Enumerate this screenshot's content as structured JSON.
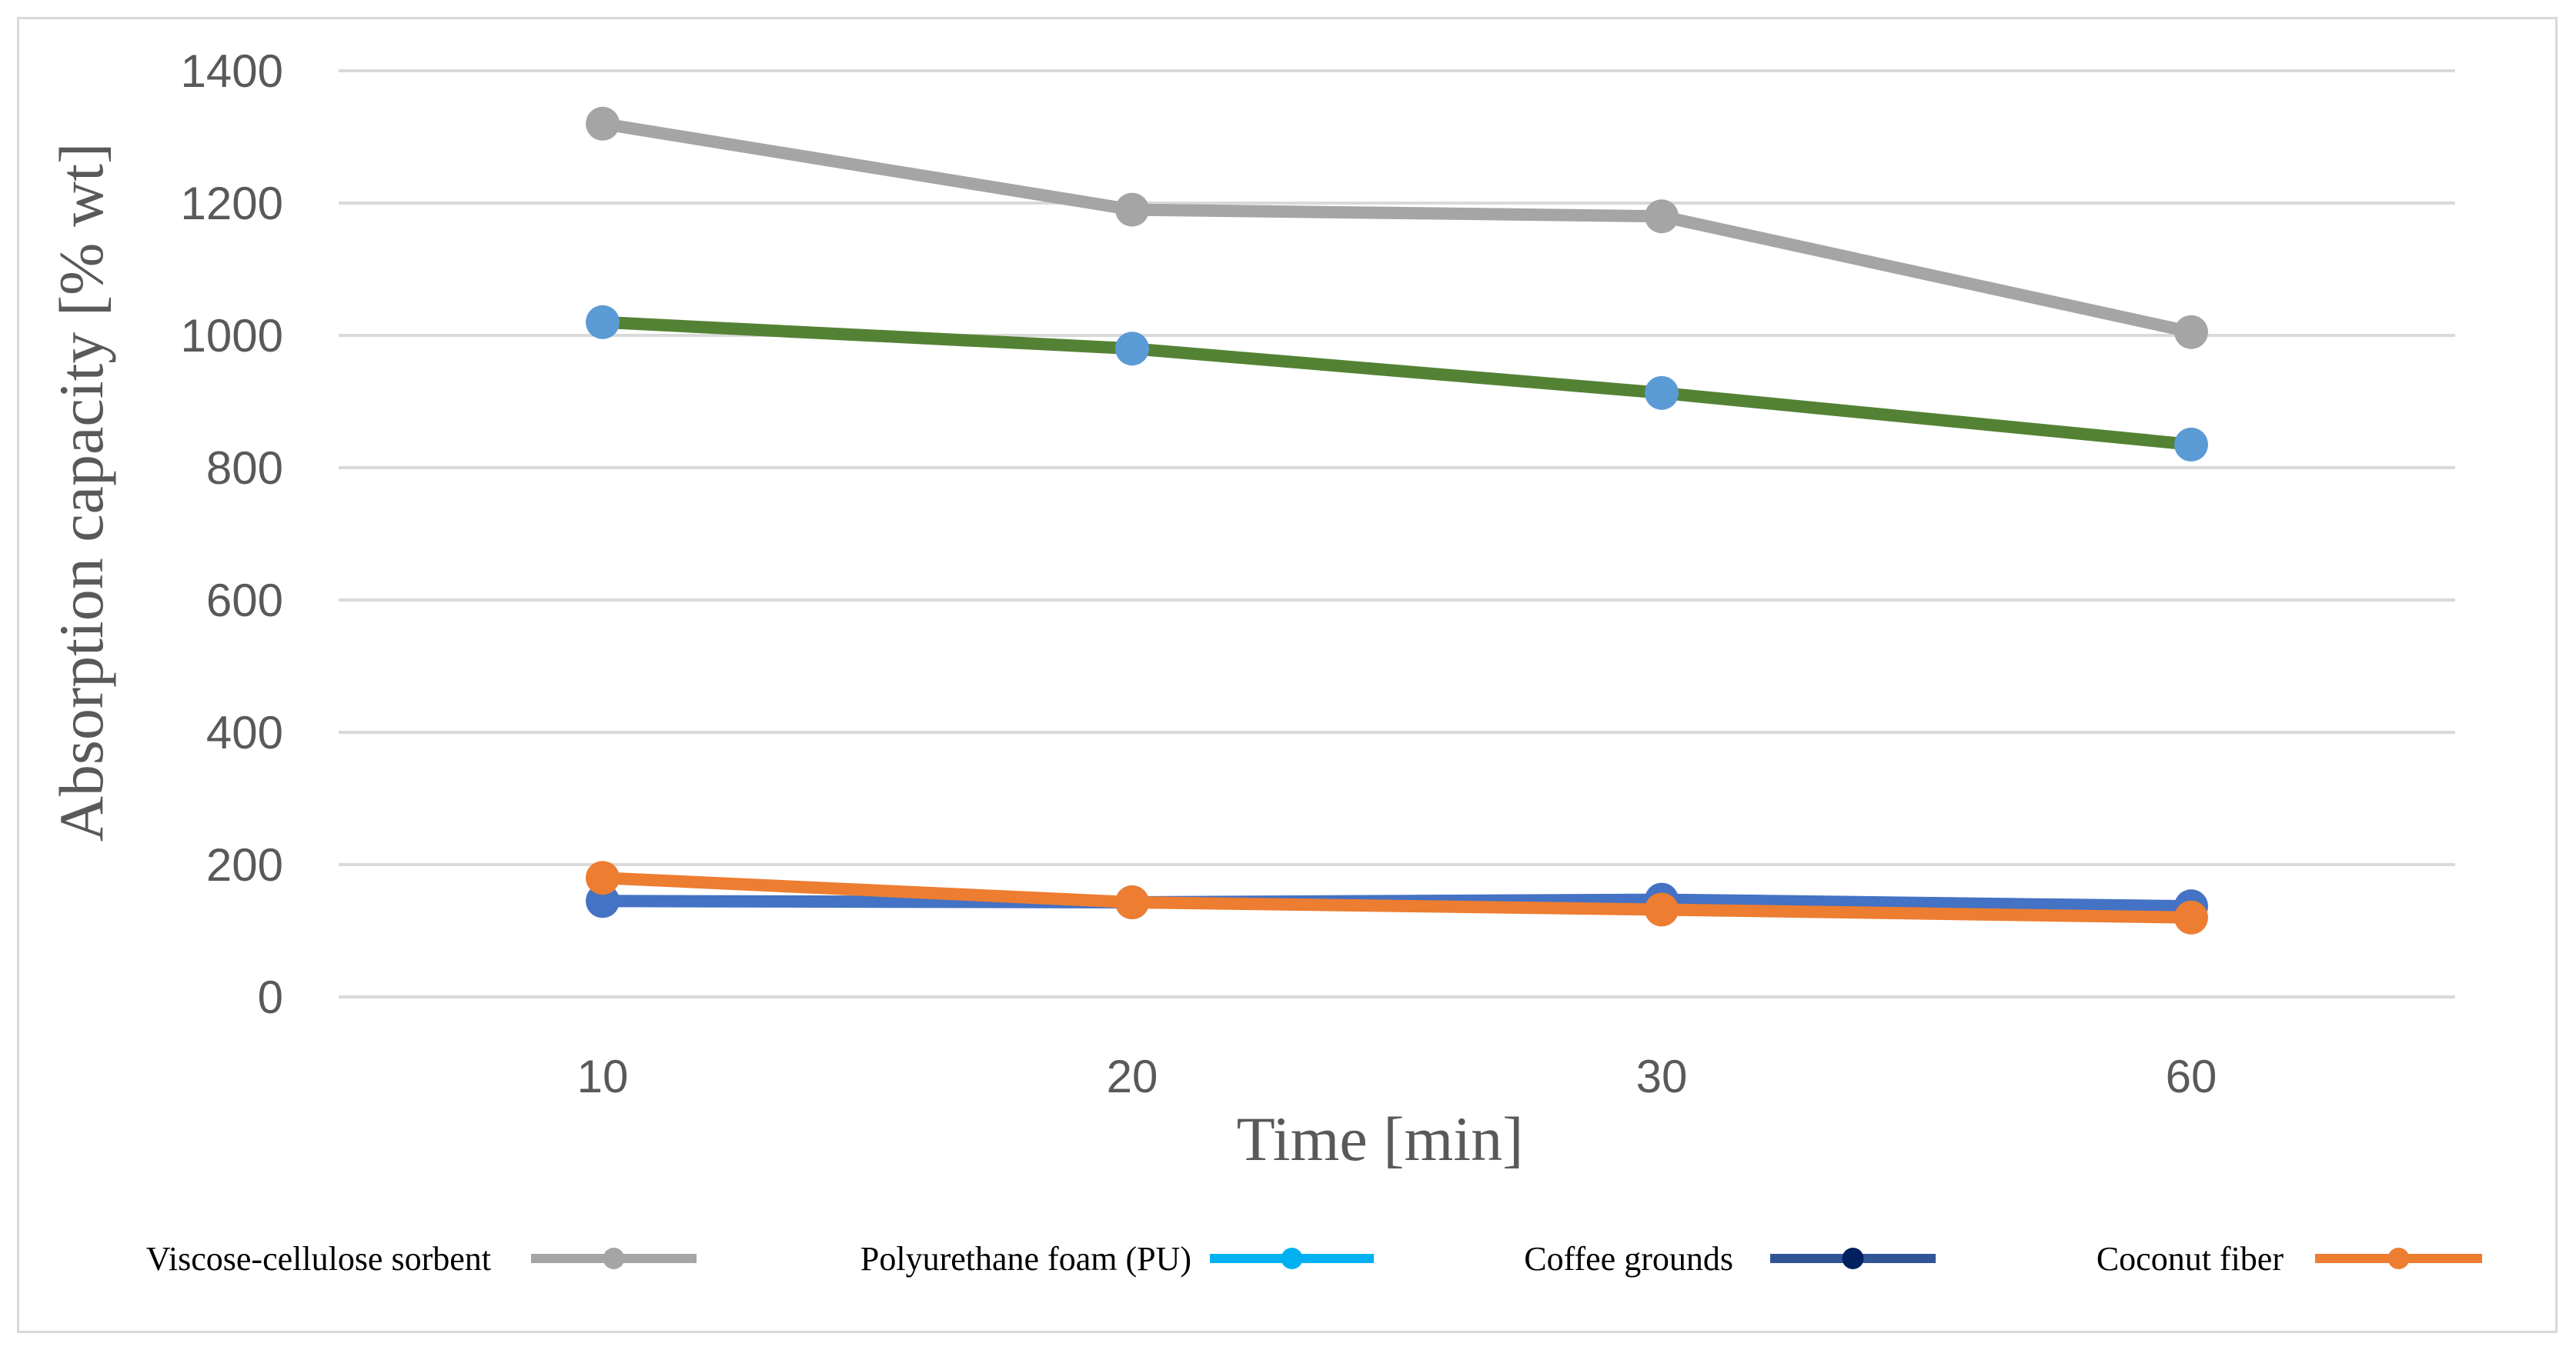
{
  "chart_data": {
    "type": "line",
    "title": "",
    "xlabel": "Time [min]",
    "ylabel": "Absorption capacity [% wt]",
    "categories": [
      "10",
      "20",
      "30",
      "60"
    ],
    "ylim": [
      0,
      1400
    ],
    "yticks": [
      0,
      200,
      400,
      600,
      800,
      1000,
      1200,
      1400
    ],
    "grid": true,
    "legend_position": "bottom",
    "series": [
      {
        "name": "Viscose-cellulose sorbent",
        "values": [
          1320,
          1190,
          1180,
          1005
        ],
        "line_color": "#a5a5a5",
        "marker_color": "#a5a5a5"
      },
      {
        "name": "Polyurethane foam (PU)",
        "values": [
          1020,
          980,
          913,
          835
        ],
        "line_color": "#548235",
        "marker_color": "#5b9bd5",
        "legend_line_color": "#00b0f0",
        "legend_marker_color": "#00b0f0"
      },
      {
        "name": "Coffee grounds",
        "values": [
          145,
          143,
          147,
          137
        ],
        "line_color": "#4472c4",
        "marker_color": "#4472c4",
        "legend_line_color": "#2f5597",
        "legend_marker_color": "#002060"
      },
      {
        "name": "Coconut fiber",
        "values": [
          180,
          143,
          132,
          120
        ],
        "line_color": "#ed7d31",
        "marker_color": "#ed7d31"
      }
    ]
  }
}
